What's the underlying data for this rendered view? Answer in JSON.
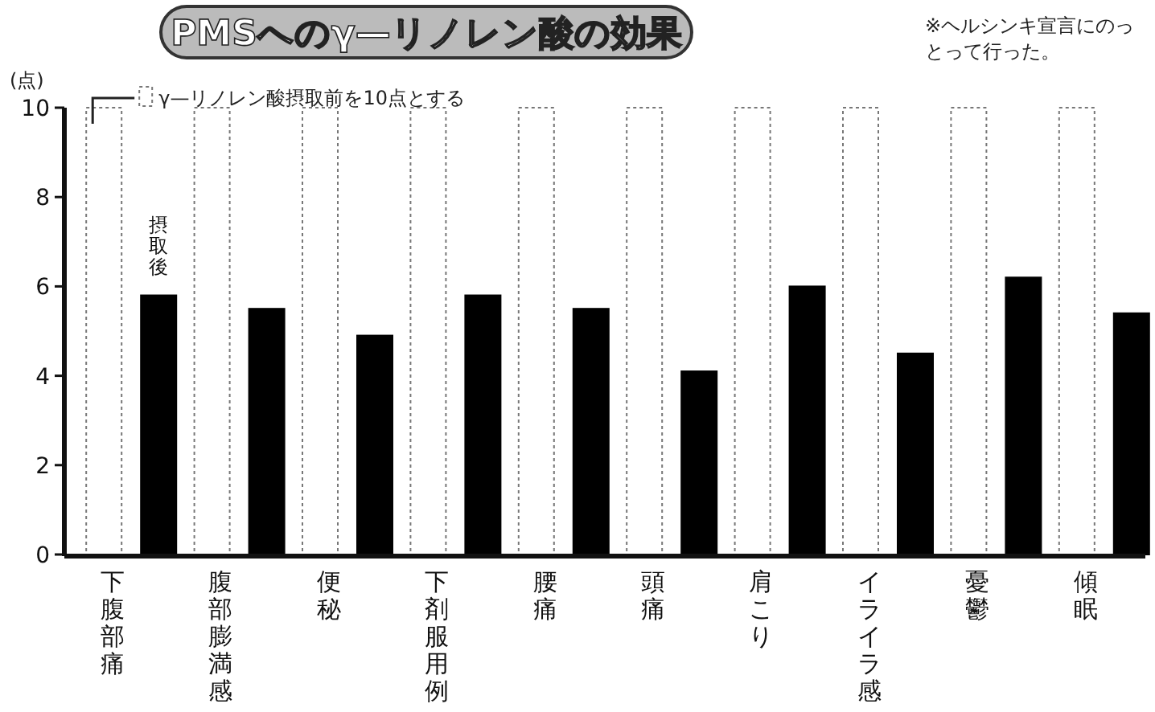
{
  "chart_data": {
    "type": "bar",
    "title": "PMSへのγ—リノレン酸の効果",
    "ylabel": "(点)",
    "annotations": [
      "※ヘルシンキ宣言にのっとって行った。"
    ],
    "categories": [
      "下腹部痛",
      "腹部膨満感",
      "便秘",
      "下剤服用例",
      "腰痛",
      "頭痛",
      "肩こり",
      "イライラ感",
      "憂鬱",
      "傾眠"
    ],
    "series": [
      {
        "name": "γ—リノレン酸摂取前を10点とする",
        "color": "#ffffff",
        "values": [
          10,
          10,
          10,
          10,
          10,
          10,
          10,
          10,
          10,
          10
        ]
      },
      {
        "name": "摂取後",
        "color": "#000000",
        "values": [
          5.8,
          5.5,
          4.9,
          5.8,
          5.5,
          4.1,
          6.0,
          4.5,
          6.2,
          5.4
        ]
      }
    ],
    "ylim": [
      0,
      10
    ],
    "yticks": [
      0,
      2,
      4,
      6,
      8,
      10
    ],
    "grid": false,
    "legend": "top left"
  }
}
